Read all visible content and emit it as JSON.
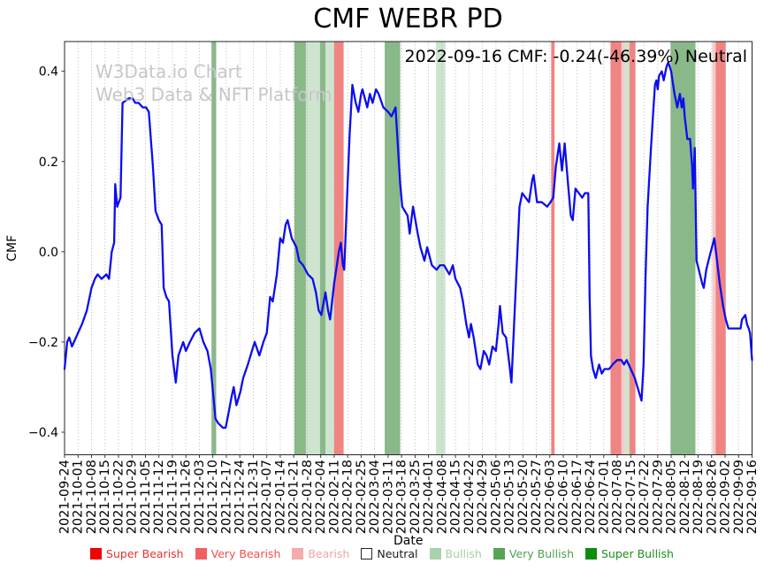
{
  "title": "CMF WEBR PD",
  "annotation": "2022-09-16 CMF: -0.24(-46.39%) Neutral",
  "watermark": {
    "line1": "W3Data.io Chart",
    "line2": "Web3 Data & NFT Platform"
  },
  "colors": {
    "line": "#0d0dee",
    "grid": "#b0b0b0",
    "axis": "#262626",
    "watermark": "#c7c7c7",
    "bands": {
      "very_bullish": "rgba(40,125,40,0.55)",
      "bullish": "rgba(125,185,125,0.38)",
      "very_bearish": "rgba(232,55,55,0.62)",
      "bearish": "rgba(236,130,130,0.42)"
    }
  },
  "legend": {
    "items": [
      {
        "label": "Super Bearish",
        "swatch": "#ee0202",
        "text_color": "#e63232",
        "border": "none"
      },
      {
        "label": "Very Bearish",
        "swatch": "#f25f5f",
        "text_color": "#f0504f",
        "border": "none"
      },
      {
        "label": "Bearish",
        "swatch": "#f5abab",
        "text_color": "#f2a5a5",
        "border": "none"
      },
      {
        "label": "Neutral",
        "swatch": "#ffffff",
        "text_color": "#1a1a1a",
        "border": "#262626"
      },
      {
        "label": "Bullish",
        "swatch": "#aad2aa",
        "text_color": "#a6cfa6",
        "border": "none"
      },
      {
        "label": "Very Bullish",
        "swatch": "#57a457",
        "text_color": "#4f9e4f",
        "border": "none"
      },
      {
        "label": "Super Bullish",
        "swatch": "#0c8e0c",
        "text_color": "#1d8f1d",
        "border": "none"
      }
    ]
  },
  "chart_data": {
    "type": "line",
    "title": "CMF WEBR PD",
    "xlabel": "Date",
    "ylabel": "CMF",
    "ylim": [
      -0.45,
      0.466
    ],
    "yticks": [
      0.4,
      0.2,
      0.0,
      -0.2,
      -0.4
    ],
    "ytick_labels": [
      "0.4",
      "0.2",
      "0.0",
      "−0.2",
      "−0.4"
    ],
    "grid": "vertical dotted line per weekly tick",
    "legend_position": "bottom",
    "x_tick_labels": [
      "2021-09-24",
      "2021-10-01",
      "2021-10-08",
      "2021-10-15",
      "2021-10-22",
      "2021-10-29",
      "2021-11-05",
      "2021-11-12",
      "2021-11-19",
      "2021-11-26",
      "2021-12-03",
      "2021-12-10",
      "2021-12-17",
      "2021-12-24",
      "2021-12-31",
      "2022-01-07",
      "2022-01-14",
      "2022-01-21",
      "2022-01-28",
      "2022-02-04",
      "2022-02-11",
      "2022-02-18",
      "2022-02-25",
      "2022-03-04",
      "2022-03-11",
      "2022-03-18",
      "2022-03-25",
      "2022-04-01",
      "2022-04-08",
      "2022-04-15",
      "2022-04-22",
      "2022-04-29",
      "2022-05-06",
      "2022-05-13",
      "2022-05-20",
      "2022-05-27",
      "2022-06-03",
      "2022-06-10",
      "2022-06-17",
      "2022-06-24",
      "2022-07-01",
      "2022-07-08",
      "2022-07-15",
      "2022-07-22",
      "2022-07-29",
      "2022-08-05",
      "2022-08-12",
      "2022-08-19",
      "2022-08-26",
      "2022-09-02",
      "2022-09-09",
      "2022-09-16"
    ],
    "bands": [
      {
        "start_week": 10.9,
        "end_week": 11.25,
        "level": "very_bullish",
        "approx_dates": "2021-12-09 to 2021-12-12"
      },
      {
        "start_week": 17.05,
        "end_week": 17.9,
        "level": "very_bullish",
        "approx_dates": "2022-01-21 to 2022-01-27"
      },
      {
        "start_week": 17.9,
        "end_week": 18.95,
        "level": "bullish",
        "approx_dates": "2022-01-27 to 2022-02-03"
      },
      {
        "start_week": 18.95,
        "end_week": 19.35,
        "level": "very_bullish",
        "approx_dates": "2022-02-03 to 2022-02-06"
      },
      {
        "start_week": 19.35,
        "end_week": 20.0,
        "level": "bullish",
        "approx_dates": "2022-02-06 to 2022-02-10"
      },
      {
        "start_week": 20.0,
        "end_week": 20.7,
        "level": "very_bearish",
        "approx_dates": "2022-02-10 to 2022-02-15"
      },
      {
        "start_week": 23.75,
        "end_week": 24.9,
        "level": "very_bullish",
        "approx_dates": "2022-03-08 to 2022-03-16"
      },
      {
        "start_week": 27.55,
        "end_week": 28.25,
        "level": "bullish",
        "approx_dates": "2022-04-04 to 2022-04-09"
      },
      {
        "start_week": 36.1,
        "end_week": 36.35,
        "level": "very_bearish",
        "approx_dates": "2022-06-03"
      },
      {
        "start_week": 40.5,
        "end_week": 41.3,
        "level": "very_bearish",
        "approx_dates": "2022-07-05 to 2022-07-10"
      },
      {
        "start_week": 41.3,
        "end_week": 41.55,
        "level": "bearish",
        "approx_dates": "2022-07-10 to 2022-07-12"
      },
      {
        "start_week": 41.55,
        "end_week": 41.9,
        "level": "bullish",
        "approx_dates": "2022-07-12 to 2022-07-15"
      },
      {
        "start_week": 41.9,
        "end_week": 42.35,
        "level": "very_bearish",
        "approx_dates": "2022-07-15 to 2022-07-18"
      },
      {
        "start_week": 44.95,
        "end_week": 46.8,
        "level": "very_bullish",
        "approx_dates": "2022-08-04 to 2022-08-17"
      },
      {
        "start_week": 48.05,
        "end_week": 48.3,
        "level": "bearish",
        "approx_dates": "2022-08-25 to 2022-08-27"
      },
      {
        "start_week": 48.3,
        "end_week": 49.05,
        "level": "very_bearish",
        "approx_dates": "2022-08-27 to 2022-09-01"
      }
    ],
    "series": [
      {
        "name": "CMF",
        "x_unit": "weeks since 2021-09-24",
        "points": [
          [
            0,
            -0.26
          ],
          [
            0.2,
            -0.2
          ],
          [
            0.35,
            -0.19
          ],
          [
            0.55,
            -0.21
          ],
          [
            1,
            -0.18
          ],
          [
            1.3,
            -0.16
          ],
          [
            1.65,
            -0.13
          ],
          [
            2,
            -0.08
          ],
          [
            2.25,
            -0.06
          ],
          [
            2.45,
            -0.05
          ],
          [
            2.75,
            -0.06
          ],
          [
            3.1,
            -0.05
          ],
          [
            3.3,
            -0.06
          ],
          [
            3.5,
            0
          ],
          [
            3.68,
            0.02
          ],
          [
            3.76,
            0.15
          ],
          [
            3.9,
            0.1
          ],
          [
            4.15,
            0.12
          ],
          [
            4.3,
            0.33
          ],
          [
            4.75,
            0.34
          ],
          [
            5.05,
            0.34
          ],
          [
            5.25,
            0.33
          ],
          [
            5.5,
            0.33
          ],
          [
            5.8,
            0.32
          ],
          [
            6.05,
            0.32
          ],
          [
            6.25,
            0.31
          ],
          [
            6.55,
            0.19
          ],
          [
            6.75,
            0.09
          ],
          [
            7,
            0.07
          ],
          [
            7.2,
            0.06
          ],
          [
            7.35,
            -0.08
          ],
          [
            7.55,
            -0.1
          ],
          [
            7.75,
            -0.11
          ],
          [
            8,
            -0.23
          ],
          [
            8.25,
            -0.29
          ],
          [
            8.45,
            -0.23
          ],
          [
            8.8,
            -0.2
          ],
          [
            9,
            -0.22
          ],
          [
            9.3,
            -0.2
          ],
          [
            9.65,
            -0.18
          ],
          [
            10,
            -0.17
          ],
          [
            10.3,
            -0.2
          ],
          [
            10.6,
            -0.22
          ],
          [
            10.85,
            -0.26
          ],
          [
            11.2,
            -0.37
          ],
          [
            11.4,
            -0.38
          ],
          [
            11.75,
            -0.39
          ],
          [
            11.95,
            -0.39
          ],
          [
            12.15,
            -0.36
          ],
          [
            12.4,
            -0.32
          ],
          [
            12.55,
            -0.3
          ],
          [
            12.75,
            -0.34
          ],
          [
            13.05,
            -0.31
          ],
          [
            13.25,
            -0.28
          ],
          [
            13.6,
            -0.25
          ],
          [
            13.9,
            -0.22
          ],
          [
            14.1,
            -0.2
          ],
          [
            14.45,
            -0.23
          ],
          [
            14.75,
            -0.2
          ],
          [
            15,
            -0.18
          ],
          [
            15.25,
            -0.1
          ],
          [
            15.45,
            -0.11
          ],
          [
            15.75,
            -0.05
          ],
          [
            16,
            0.03
          ],
          [
            16.2,
            0.02
          ],
          [
            16.4,
            0.06
          ],
          [
            16.55,
            0.07
          ],
          [
            16.85,
            0.03
          ],
          [
            17.2,
            0.01
          ],
          [
            17.4,
            -0.02
          ],
          [
            17.7,
            -0.03
          ],
          [
            18.05,
            -0.05
          ],
          [
            18.4,
            -0.06
          ],
          [
            18.65,
            -0.09
          ],
          [
            18.85,
            -0.13
          ],
          [
            19.05,
            -0.14
          ],
          [
            19.35,
            -0.09
          ],
          [
            19.55,
            -0.13
          ],
          [
            19.7,
            -0.15
          ],
          [
            20,
            -0.07
          ],
          [
            20.35,
            0
          ],
          [
            20.5,
            0.02
          ],
          [
            20.65,
            -0.03
          ],
          [
            20.75,
            -0.04
          ],
          [
            21,
            0.15
          ],
          [
            21.15,
            0.26
          ],
          [
            21.35,
            0.37
          ],
          [
            21.6,
            0.33
          ],
          [
            21.8,
            0.31
          ],
          [
            22,
            0.35
          ],
          [
            22.1,
            0.36
          ],
          [
            22.45,
            0.32
          ],
          [
            22.65,
            0.35
          ],
          [
            22.85,
            0.33
          ],
          [
            23.1,
            0.36
          ],
          [
            23.3,
            0.35
          ],
          [
            23.65,
            0.32
          ],
          [
            24,
            0.31
          ],
          [
            24.25,
            0.3
          ],
          [
            24.55,
            0.32
          ],
          [
            24.9,
            0.15
          ],
          [
            25.05,
            0.1
          ],
          [
            25.25,
            0.09
          ],
          [
            25.45,
            0.08
          ],
          [
            25.6,
            0.04
          ],
          [
            25.85,
            0.1
          ],
          [
            26.2,
            0.04
          ],
          [
            26.4,
            0.01
          ],
          [
            26.7,
            -0.02
          ],
          [
            26.9,
            0.01
          ],
          [
            27.25,
            -0.03
          ],
          [
            27.6,
            -0.04
          ],
          [
            27.85,
            -0.03
          ],
          [
            28.15,
            -0.03
          ],
          [
            28.55,
            -0.05
          ],
          [
            28.8,
            -0.03
          ],
          [
            29,
            -0.06
          ],
          [
            29.35,
            -0.08
          ],
          [
            29.55,
            -0.11
          ],
          [
            29.8,
            -0.16
          ],
          [
            30,
            -0.19
          ],
          [
            30.15,
            -0.16
          ],
          [
            30.35,
            -0.19
          ],
          [
            30.65,
            -0.25
          ],
          [
            30.85,
            -0.26
          ],
          [
            31.1,
            -0.22
          ],
          [
            31.3,
            -0.23
          ],
          [
            31.5,
            -0.25
          ],
          [
            31.75,
            -0.21
          ],
          [
            32,
            -0.22
          ],
          [
            32.2,
            -0.16
          ],
          [
            32.3,
            -0.12
          ],
          [
            32.5,
            -0.18
          ],
          [
            32.75,
            -0.19
          ],
          [
            33,
            -0.25
          ],
          [
            33.15,
            -0.29
          ],
          [
            33.5,
            -0.06
          ],
          [
            33.75,
            0.1
          ],
          [
            33.95,
            0.13
          ],
          [
            34.2,
            0.12
          ],
          [
            34.45,
            0.11
          ],
          [
            34.7,
            0.16
          ],
          [
            34.8,
            0.17
          ],
          [
            35.05,
            0.11
          ],
          [
            35.4,
            0.11
          ],
          [
            35.8,
            0.1
          ],
          [
            36.05,
            0.11
          ],
          [
            36.25,
            0.12
          ],
          [
            36.45,
            0.19
          ],
          [
            36.7,
            0.24
          ],
          [
            36.9,
            0.18
          ],
          [
            37.1,
            0.24
          ],
          [
            37.35,
            0.15
          ],
          [
            37.55,
            0.08
          ],
          [
            37.7,
            0.07
          ],
          [
            37.9,
            0.14
          ],
          [
            38.15,
            0.13
          ],
          [
            38.4,
            0.12
          ],
          [
            38.6,
            0.13
          ],
          [
            38.85,
            0.13
          ],
          [
            38.95,
            -0.1
          ],
          [
            39.05,
            -0.23
          ],
          [
            39.2,
            -0.26
          ],
          [
            39.4,
            -0.28
          ],
          [
            39.65,
            -0.25
          ],
          [
            39.85,
            -0.27
          ],
          [
            40.05,
            -0.26
          ],
          [
            40.4,
            -0.26
          ],
          [
            40.65,
            -0.25
          ],
          [
            41,
            -0.24
          ],
          [
            41.3,
            -0.24
          ],
          [
            41.5,
            -0.25
          ],
          [
            41.7,
            -0.24
          ],
          [
            42,
            -0.26
          ],
          [
            42.3,
            -0.28
          ],
          [
            42.5,
            -0.3
          ],
          [
            42.7,
            -0.32
          ],
          [
            42.8,
            -0.33
          ],
          [
            42.95,
            -0.25
          ],
          [
            43.1,
            -0.05
          ],
          [
            43.25,
            0.1
          ],
          [
            43.5,
            0.23
          ],
          [
            43.65,
            0.3
          ],
          [
            43.8,
            0.37
          ],
          [
            43.9,
            0.38
          ],
          [
            44,
            0.36
          ],
          [
            44.1,
            0.39
          ],
          [
            44.3,
            0.4
          ],
          [
            44.45,
            0.38
          ],
          [
            44.65,
            0.41
          ],
          [
            44.78,
            0.42
          ],
          [
            45,
            0.4
          ],
          [
            45.25,
            0.35
          ],
          [
            45.45,
            0.32
          ],
          [
            45.65,
            0.35
          ],
          [
            45.78,
            0.32
          ],
          [
            45.9,
            0.34
          ],
          [
            46,
            0.3
          ],
          [
            46.2,
            0.25
          ],
          [
            46.4,
            0.25
          ],
          [
            46.55,
            0.19
          ],
          [
            46.62,
            0.14
          ],
          [
            46.75,
            0.23
          ],
          [
            46.88,
            -0.02
          ],
          [
            47.05,
            -0.04
          ],
          [
            47.3,
            -0.07
          ],
          [
            47.42,
            -0.08
          ],
          [
            47.6,
            -0.04
          ],
          [
            47.85,
            -0.01
          ],
          [
            48.2,
            0.03
          ],
          [
            48.4,
            -0.02
          ],
          [
            48.6,
            -0.07
          ],
          [
            48.85,
            -0.12
          ],
          [
            49.05,
            -0.15
          ],
          [
            49.25,
            -0.17
          ],
          [
            49.5,
            -0.17
          ],
          [
            49.85,
            -0.17
          ],
          [
            50.15,
            -0.17
          ],
          [
            50.25,
            -0.15
          ],
          [
            50.5,
            -0.14
          ],
          [
            50.62,
            -0.16
          ],
          [
            50.75,
            -0.17
          ],
          [
            50.85,
            -0.18
          ],
          [
            51,
            -0.24
          ]
        ]
      }
    ]
  }
}
